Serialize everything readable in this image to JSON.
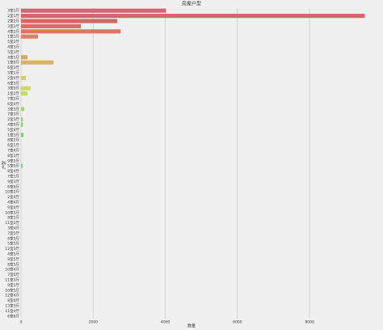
{
  "chart_data": {
    "type": "barh",
    "title": "房屋户型",
    "x_label": "数量",
    "y_label": "户型",
    "categories": [
      "3室1厅",
      "2室1厅",
      "2室2厅",
      "3室2厅",
      "4室2厅",
      "1室1厅",
      "5室2厅",
      "4室3厅",
      "5室3厅",
      "4室1厅",
      "1室0厅",
      "6室2厅",
      "5室1厅",
      "2室0厅",
      "6室3厅",
      "3室0厅",
      "1室2厅",
      "7室2厅",
      "6室4厅",
      "3室3厅",
      "7室3厅",
      "2室3厅",
      "4室0厅",
      "5室4厅",
      "1室3厅",
      "8室2厅",
      "6室1厅",
      "7室4厅",
      "8室3厅",
      "9室2厅",
      "5室0厅",
      "8室4厅",
      "7室1厅",
      "9室3厅",
      "6室0厅",
      "10室2厅",
      "2室4厅",
      "4室4厅",
      "9室4厅",
      "10室3厅",
      "8室1厅",
      "11室2厅",
      "3室4厅",
      "7室5厅",
      "6室5厅",
      "5室5厅",
      "12室3厅",
      "4室5厅",
      "9室5厅",
      "8室5厅",
      "10室4厅",
      "7室0厅",
      "11室3厅",
      "9室1厅",
      "10室5厅",
      "12室4厅",
      "8室0厅",
      "13室3厅",
      "11室4厅",
      "6室6厅"
    ],
    "values": [
      4020,
      9530,
      2670,
      1660,
      2760,
      470,
      0,
      0,
      0,
      180,
      900,
      0,
      0,
      135,
      0,
      270,
      180,
      0,
      0,
      95,
      0,
      50,
      55,
      0,
      70,
      0,
      0,
      0,
      0,
      0,
      45,
      0,
      0,
      0,
      0,
      0,
      0,
      0,
      0,
      0,
      0,
      0,
      0,
      0,
      0,
      0,
      0,
      0,
      0,
      0,
      0,
      0,
      0,
      0,
      0,
      0,
      0,
      0,
      0,
      0
    ],
    "palette": "husl",
    "xlim": [
      0,
      9900
    ],
    "xticks": [
      0,
      2000,
      4000,
      6000,
      8000
    ],
    "grid": true
  }
}
